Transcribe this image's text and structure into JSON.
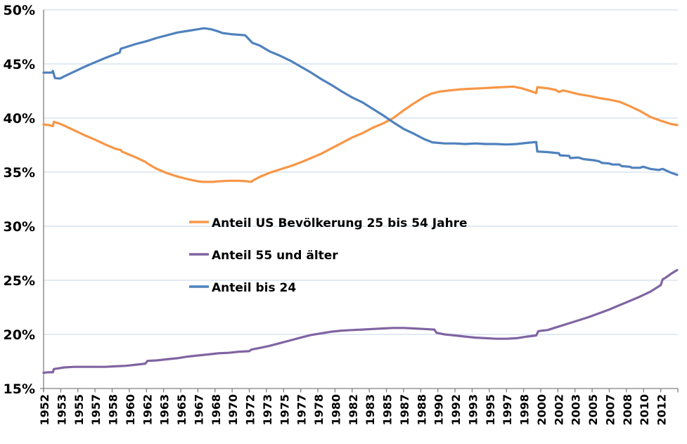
{
  "chart_data": {
    "type": "line",
    "title": "",
    "xlabel": "",
    "ylabel": "",
    "grid": true,
    "legend_position": "inside-center-left",
    "background_color": "#FFFFFF",
    "gridline_color": "#C6D4E7",
    "axis_color": "#808080",
    "label_color": "#000000",
    "y_axis": {
      "min": 15,
      "max": 50,
      "step": 5,
      "ticks": [
        {
          "v": 50,
          "label": "50%"
        },
        {
          "v": 45,
          "label": "45%"
        },
        {
          "v": 40,
          "label": "40%"
        },
        {
          "v": 35,
          "label": "35%"
        },
        {
          "v": 30,
          "label": "30%"
        },
        {
          "v": 25,
          "label": "25%"
        },
        {
          "v": 20,
          "label": "20%"
        },
        {
          "v": 15,
          "label": "15%"
        }
      ]
    },
    "x_axis": {
      "start_year": 1952,
      "end_year": 2013.67,
      "tick_interval_months": 20,
      "tick_labels": [
        "1952",
        "1953",
        "1955",
        "1957",
        "1958",
        "1960",
        "1962",
        "1963",
        "1965",
        "1967",
        "1968",
        "1970",
        "1972",
        "1973",
        "1975",
        "1977",
        "1978",
        "1980",
        "1982",
        "1983",
        "1985",
        "1987",
        "1988",
        "1990",
        "1992",
        "1993",
        "1995",
        "1997",
        "1998",
        "2000",
        "2002",
        "2003",
        "2005",
        "2007",
        "2008",
        "2010",
        "2012"
      ]
    },
    "series": [
      {
        "name": "Anteil US Bevölkerung 25 bis 54 Jahre",
        "color": "#F79646",
        "points": [
          [
            1952.0,
            39.4
          ],
          [
            1952.5,
            39.35
          ],
          [
            1952.9,
            39.25
          ],
          [
            1953.0,
            39.65
          ],
          [
            1953.5,
            39.5
          ],
          [
            1954,
            39.3
          ],
          [
            1955,
            38.85
          ],
          [
            1956,
            38.4
          ],
          [
            1957,
            38.0
          ],
          [
            1958,
            37.55
          ],
          [
            1959,
            37.15
          ],
          [
            1959.5,
            37.05
          ],
          [
            1959.6,
            36.9
          ],
          [
            1960,
            36.75
          ],
          [
            1961,
            36.35
          ],
          [
            1961.9,
            35.95
          ],
          [
            1962.1,
            35.8
          ],
          [
            1963,
            35.3
          ],
          [
            1964,
            34.9
          ],
          [
            1965,
            34.6
          ],
          [
            1966,
            34.35
          ],
          [
            1967,
            34.15
          ],
          [
            1967.5,
            34.1
          ],
          [
            1968.5,
            34.1
          ],
          [
            1969,
            34.15
          ],
          [
            1970,
            34.2
          ],
          [
            1971,
            34.2
          ],
          [
            1971.8,
            34.15
          ],
          [
            1972.2,
            34.1
          ],
          [
            1972.4,
            34.25
          ],
          [
            1973,
            34.55
          ],
          [
            1974,
            34.95
          ],
          [
            1975,
            35.25
          ],
          [
            1976,
            35.55
          ],
          [
            1977,
            35.9
          ],
          [
            1978,
            36.3
          ],
          [
            1979,
            36.7
          ],
          [
            1980,
            37.2
          ],
          [
            1981,
            37.7
          ],
          [
            1982,
            38.2
          ],
          [
            1983,
            38.6
          ],
          [
            1984,
            39.1
          ],
          [
            1985,
            39.5
          ],
          [
            1986,
            40.0
          ],
          [
            1987,
            40.7
          ],
          [
            1988,
            41.35
          ],
          [
            1989,
            41.95
          ],
          [
            1989.7,
            42.25
          ],
          [
            1990.5,
            42.45
          ],
          [
            1991.5,
            42.55
          ],
          [
            1992.5,
            42.65
          ],
          [
            1993.5,
            42.7
          ],
          [
            1994.5,
            42.75
          ],
          [
            1995.5,
            42.8
          ],
          [
            1996.5,
            42.85
          ],
          [
            1997.7,
            42.9
          ],
          [
            1998.5,
            42.75
          ],
          [
            1999.5,
            42.45
          ],
          [
            1999.9,
            42.3
          ],
          [
            2000.0,
            42.85
          ],
          [
            2001,
            42.75
          ],
          [
            2001.8,
            42.6
          ],
          [
            2002.1,
            42.4
          ],
          [
            2002.5,
            42.55
          ],
          [
            2003,
            42.45
          ],
          [
            2004,
            42.2
          ],
          [
            2005,
            42.05
          ],
          [
            2006,
            41.85
          ],
          [
            2007,
            41.7
          ],
          [
            2008,
            41.5
          ],
          [
            2009,
            41.1
          ],
          [
            2010,
            40.65
          ],
          [
            2011,
            40.1
          ],
          [
            2012,
            39.75
          ],
          [
            2013,
            39.45
          ],
          [
            2013.6,
            39.35
          ]
        ]
      },
      {
        "name": "Anteil 55 und älter",
        "color": "#8064A2",
        "points": [
          [
            1952.0,
            16.45
          ],
          [
            1952.4,
            16.5
          ],
          [
            1952.9,
            16.5
          ],
          [
            1953.0,
            16.8
          ],
          [
            1954,
            16.95
          ],
          [
            1955,
            17.0
          ],
          [
            1956,
            17.0
          ],
          [
            1957,
            17.0
          ],
          [
            1958,
            17.0
          ],
          [
            1959,
            17.05
          ],
          [
            1960,
            17.1
          ],
          [
            1961,
            17.2
          ],
          [
            1961.9,
            17.3
          ],
          [
            1962.1,
            17.55
          ],
          [
            1963,
            17.6
          ],
          [
            1964,
            17.7
          ],
          [
            1965,
            17.8
          ],
          [
            1966,
            17.95
          ],
          [
            1967,
            18.05
          ],
          [
            1968,
            18.15
          ],
          [
            1969,
            18.25
          ],
          [
            1970,
            18.3
          ],
          [
            1971,
            18.4
          ],
          [
            1972.0,
            18.45
          ],
          [
            1972.2,
            18.6
          ],
          [
            1973,
            18.75
          ],
          [
            1974,
            18.95
          ],
          [
            1975,
            19.2
          ],
          [
            1976,
            19.45
          ],
          [
            1977,
            19.7
          ],
          [
            1978,
            19.95
          ],
          [
            1979,
            20.1
          ],
          [
            1980,
            20.25
          ],
          [
            1981,
            20.35
          ],
          [
            1982,
            20.4
          ],
          [
            1983,
            20.45
          ],
          [
            1984,
            20.5
          ],
          [
            1985,
            20.55
          ],
          [
            1986,
            20.6
          ],
          [
            1987,
            20.6
          ],
          [
            1988,
            20.55
          ],
          [
            1989,
            20.5
          ],
          [
            1990.0,
            20.45
          ],
          [
            1990.2,
            20.15
          ],
          [
            1991,
            20.0
          ],
          [
            1992,
            19.9
          ],
          [
            1993,
            19.8
          ],
          [
            1994,
            19.7
          ],
          [
            1995,
            19.65
          ],
          [
            1996,
            19.6
          ],
          [
            1997,
            19.6
          ],
          [
            1998,
            19.65
          ],
          [
            1999,
            19.8
          ],
          [
            1999.9,
            19.9
          ],
          [
            2000.1,
            20.3
          ],
          [
            2000.5,
            20.35
          ],
          [
            2001,
            20.4
          ],
          [
            2002,
            20.7
          ],
          [
            2003,
            21.0
          ],
          [
            2004,
            21.3
          ],
          [
            2005,
            21.6
          ],
          [
            2006,
            21.95
          ],
          [
            2007,
            22.3
          ],
          [
            2008,
            22.7
          ],
          [
            2009,
            23.1
          ],
          [
            2010,
            23.5
          ],
          [
            2011,
            23.95
          ],
          [
            2012.0,
            24.55
          ],
          [
            2012.2,
            25.1
          ],
          [
            2012.5,
            25.25
          ],
          [
            2013,
            25.6
          ],
          [
            2013.6,
            25.95
          ]
        ]
      },
      {
        "name": "Anteil bis 24",
        "color": "#4F81BD",
        "points": [
          [
            1952.0,
            44.2
          ],
          [
            1952.8,
            44.2
          ],
          [
            1952.9,
            44.35
          ],
          [
            1953.1,
            43.7
          ],
          [
            1953.6,
            43.65
          ],
          [
            1954,
            43.85
          ],
          [
            1955,
            44.3
          ],
          [
            1956,
            44.75
          ],
          [
            1957,
            45.15
          ],
          [
            1958,
            45.55
          ],
          [
            1959.4,
            46.05
          ],
          [
            1959.5,
            46.4
          ],
          [
            1960,
            46.55
          ],
          [
            1961,
            46.85
          ],
          [
            1962,
            47.1
          ],
          [
            1963,
            47.4
          ],
          [
            1964,
            47.65
          ],
          [
            1965,
            47.9
          ],
          [
            1966,
            48.05
          ],
          [
            1967,
            48.2
          ],
          [
            1967.6,
            48.3
          ],
          [
            1968.3,
            48.2
          ],
          [
            1969,
            48.0
          ],
          [
            1969.4,
            47.85
          ],
          [
            1970.2,
            47.75
          ],
          [
            1971.6,
            47.65
          ],
          [
            1972.3,
            46.95
          ],
          [
            1973,
            46.7
          ],
          [
            1974,
            46.15
          ],
          [
            1975,
            45.75
          ],
          [
            1976,
            45.3
          ],
          [
            1977,
            44.75
          ],
          [
            1978,
            44.2
          ],
          [
            1979,
            43.6
          ],
          [
            1980,
            43.05
          ],
          [
            1981,
            42.45
          ],
          [
            1982,
            41.9
          ],
          [
            1983,
            41.45
          ],
          [
            1984,
            40.85
          ],
          [
            1985,
            40.25
          ],
          [
            1986,
            39.6
          ],
          [
            1987,
            39.0
          ],
          [
            1988,
            38.55
          ],
          [
            1989,
            38.05
          ],
          [
            1989.8,
            37.75
          ],
          [
            1991,
            37.65
          ],
          [
            1992,
            37.65
          ],
          [
            1993,
            37.6
          ],
          [
            1994,
            37.65
          ],
          [
            1995,
            37.6
          ],
          [
            1996,
            37.6
          ],
          [
            1997,
            37.55
          ],
          [
            1998,
            37.6
          ],
          [
            1999,
            37.7
          ],
          [
            1999.9,
            37.78
          ],
          [
            2000.0,
            36.9
          ],
          [
            2001,
            36.85
          ],
          [
            2002.1,
            36.75
          ],
          [
            2002.2,
            36.55
          ],
          [
            2003.1,
            36.5
          ],
          [
            2003.2,
            36.3
          ],
          [
            2004,
            36.35
          ],
          [
            2004.5,
            36.2
          ],
          [
            2005.5,
            36.1
          ],
          [
            2006,
            36.0
          ],
          [
            2006.3,
            35.85
          ],
          [
            2007,
            35.8
          ],
          [
            2007.3,
            35.7
          ],
          [
            2008,
            35.7
          ],
          [
            2008.2,
            35.55
          ],
          [
            2009,
            35.5
          ],
          [
            2009.2,
            35.4
          ],
          [
            2010,
            35.4
          ],
          [
            2010.3,
            35.5
          ],
          [
            2011,
            35.3
          ],
          [
            2011.8,
            35.2
          ],
          [
            2012.2,
            35.3
          ],
          [
            2013,
            34.95
          ],
          [
            2013.6,
            34.75
          ]
        ]
      }
    ],
    "legend_order": [
      0,
      1,
      2
    ]
  }
}
